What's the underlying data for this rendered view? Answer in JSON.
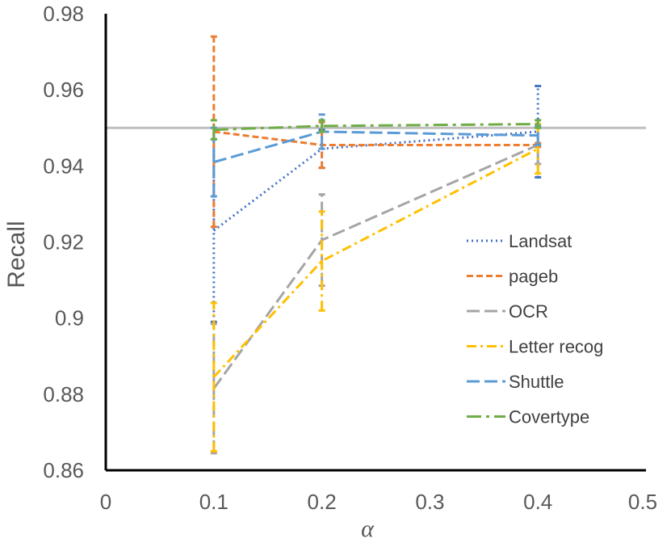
{
  "chart_data": {
    "type": "line",
    "title": "",
    "xlabel": "α",
    "ylabel": "Recall",
    "xlim": [
      0,
      0.5
    ],
    "ylim": [
      0.86,
      0.98
    ],
    "x_ticks": [
      0,
      0.1,
      0.2,
      0.3,
      0.4,
      0.5
    ],
    "x_tick_labels": [
      "0",
      "0.1",
      "0.2",
      "0.3",
      "0.4",
      "0.5"
    ],
    "y_ticks": [
      0.86,
      0.88,
      0.9,
      0.92,
      0.94,
      0.96,
      0.98
    ],
    "y_tick_labels": [
      "0.86",
      "0.88",
      "0.9",
      "0.92",
      "0.94",
      "0.96",
      "0.98"
    ],
    "grid": false,
    "legend_position": "right",
    "reference_line": {
      "y": 0.95,
      "color": "#bfbfbf"
    },
    "x": [
      0.1,
      0.2,
      0.4
    ],
    "series": [
      {
        "name": "Landsat",
        "color": "#4472c4",
        "dash": "dot",
        "values": [
          0.923,
          0.9445,
          0.949
        ],
        "error": [
          0.024,
          0.005,
          0.012
        ]
      },
      {
        "name": "pageb",
        "color": "#ed7d31",
        "dash": "dash",
        "values": [
          0.949,
          0.9455,
          0.9455
        ],
        "error": [
          0.025,
          0.006,
          0.0005
        ]
      },
      {
        "name": "OCR",
        "color": "#a5a5a5",
        "dash": "longdash",
        "values": [
          0.8815,
          0.9205,
          0.9455
        ],
        "error": [
          0.017,
          0.012,
          0.005
        ]
      },
      {
        "name": "Letter recog",
        "color": "#ffc000",
        "dash": "dashdot",
        "values": [
          0.8845,
          0.915,
          0.9445
        ],
        "error": [
          0.0195,
          0.013,
          0.0065
        ]
      },
      {
        "name": "Shuttle",
        "color": "#5b9bd5",
        "dash": "longdash",
        "values": [
          0.941,
          0.949,
          0.948
        ],
        "error": [
          0.009,
          0.0045,
          0.0025
        ]
      },
      {
        "name": "Covertype",
        "color": "#70ad47",
        "dash": "longdashdot",
        "values": [
          0.9495,
          0.9505,
          0.951
        ],
        "error": [
          0.0025,
          0.0015,
          0.001
        ]
      }
    ]
  }
}
